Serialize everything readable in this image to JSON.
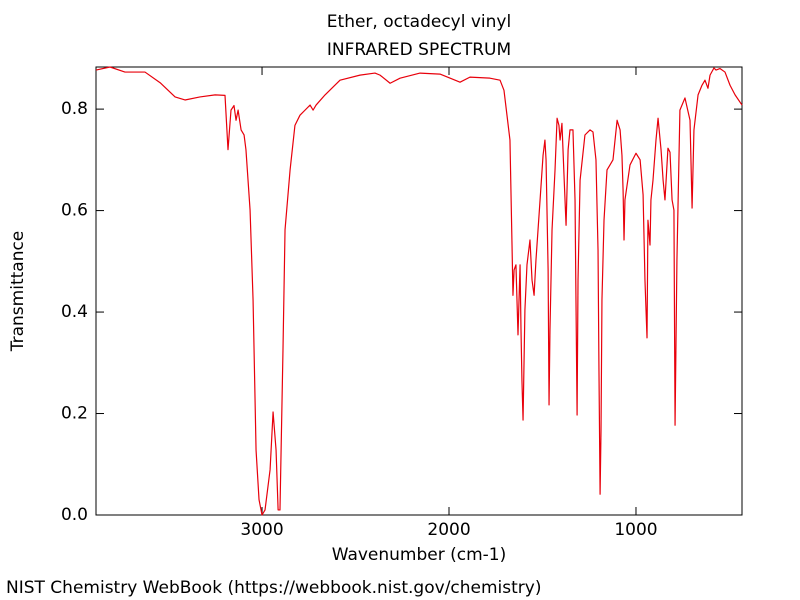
{
  "chart_data": {
    "type": "line",
    "title": "Ether, octadecyl vinyl",
    "subtitle": "INFRARED SPECTRUM",
    "xlabel": "Wavenumber (cm-1)",
    "ylabel": "Transmittance",
    "source": "NIST Chemistry WebBook (https://webbook.nist.gov/chemistry)",
    "color": "#e8000b",
    "xlim": [
      3888,
      433
    ],
    "ylim": [
      0,
      0.883
    ],
    "xticks": [
      3000,
      2000,
      1000
    ],
    "yticks": [
      {
        "value": 0,
        "label": "0.0"
      },
      0.2,
      0.4,
      0.6,
      0.8
    ],
    "x": [
      3888,
      3813,
      3733,
      3626,
      3545,
      3465,
      3412,
      3332,
      3251,
      3198,
      3182,
      3166,
      3150,
      3139,
      3128,
      3112,
      3096,
      3086,
      3064,
      3048,
      3032,
      3016,
      3000,
      2984,
      2957,
      2941,
      2925,
      2914,
      2904,
      2888,
      2877,
      2850,
      2824,
      2797,
      2770,
      2743,
      2727,
      2711,
      2663,
      2583,
      2476,
      2396,
      2369,
      2315,
      2262,
      2155,
      2048,
      1941,
      1888,
      1781,
      1727,
      1706,
      1674,
      1663,
      1658,
      1652,
      1642,
      1631,
      1620,
      1615,
      1610,
      1604,
      1594,
      1583,
      1567,
      1556,
      1545,
      1535,
      1513,
      1497,
      1487,
      1481,
      1470,
      1465,
      1460,
      1449,
      1433,
      1422,
      1412,
      1406,
      1396,
      1385,
      1374,
      1363,
      1353,
      1337,
      1326,
      1321,
      1315,
      1310,
      1299,
      1273,
      1246,
      1230,
      1214,
      1203,
      1198,
      1192,
      1187,
      1182,
      1171,
      1155,
      1139,
      1123,
      1112,
      1101,
      1085,
      1075,
      1069,
      1064,
      1059,
      1032,
      1000,
      978,
      962,
      952,
      941,
      936,
      925,
      920,
      909,
      893,
      882,
      866,
      855,
      845,
      829,
      818,
      807,
      797,
      791,
      781,
      765,
      738,
      711,
      700,
      690,
      668,
      647,
      631,
      615,
      604,
      583,
      572,
      551,
      524,
      497,
      470,
      433
    ],
    "values": [
      0.877,
      0.883,
      0.873,
      0.873,
      0.852,
      0.824,
      0.818,
      0.824,
      0.828,
      0.827,
      0.72,
      0.798,
      0.807,
      0.778,
      0.798,
      0.759,
      0.749,
      0.72,
      0.601,
      0.424,
      0.128,
      0.03,
      0.0,
      0.01,
      0.089,
      0.203,
      0.128,
      0.01,
      0.01,
      0.325,
      0.562,
      0.68,
      0.768,
      0.788,
      0.798,
      0.808,
      0.798,
      0.808,
      0.828,
      0.857,
      0.867,
      0.871,
      0.867,
      0.851,
      0.861,
      0.871,
      0.869,
      0.853,
      0.863,
      0.861,
      0.857,
      0.837,
      0.739,
      0.532,
      0.433,
      0.483,
      0.493,
      0.355,
      0.493,
      0.365,
      0.266,
      0.187,
      0.404,
      0.493,
      0.542,
      0.463,
      0.433,
      0.502,
      0.621,
      0.709,
      0.739,
      0.7,
      0.483,
      0.217,
      0.365,
      0.562,
      0.68,
      0.782,
      0.768,
      0.739,
      0.772,
      0.67,
      0.571,
      0.72,
      0.759,
      0.759,
      0.621,
      0.424,
      0.197,
      0.463,
      0.66,
      0.749,
      0.759,
      0.755,
      0.7,
      0.522,
      0.286,
      0.041,
      0.167,
      0.424,
      0.581,
      0.68,
      0.69,
      0.7,
      0.739,
      0.778,
      0.759,
      0.709,
      0.64,
      0.542,
      0.621,
      0.69,
      0.713,
      0.7,
      0.631,
      0.463,
      0.349,
      0.581,
      0.532,
      0.621,
      0.66,
      0.739,
      0.782,
      0.72,
      0.66,
      0.621,
      0.723,
      0.715,
      0.621,
      0.601,
      0.177,
      0.502,
      0.798,
      0.822,
      0.778,
      0.605,
      0.759,
      0.828,
      0.847,
      0.857,
      0.841,
      0.867,
      0.881,
      0.877,
      0.88,
      0.873,
      0.847,
      0.828,
      0.808
    ]
  }
}
